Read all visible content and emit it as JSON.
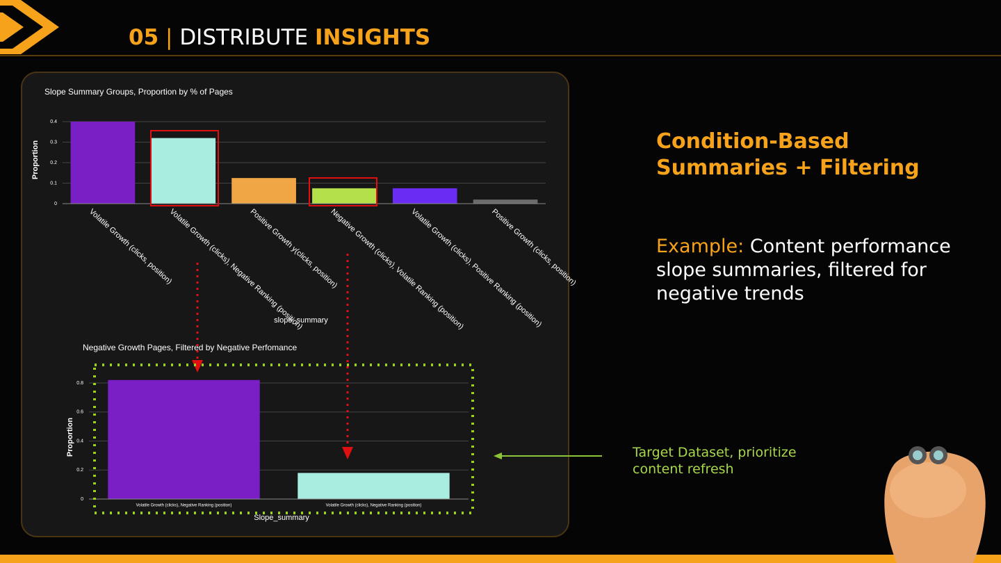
{
  "header": {
    "number": "05",
    "separator": "|",
    "title": "DISTRIBUTE",
    "highlight": "INSIGHTS"
  },
  "chart_data": [
    {
      "type": "bar",
      "title": "Slope Summary Groups, Proportion by % of Pages",
      "ylabel": "Proportion",
      "xlabel": "slope_summary",
      "categories": [
        "Volatile Growth (clicks, position)",
        "Volatile Growth (clicks), Negative Ranking (position)",
        "Positive Growth y(clicks, position)",
        "Negative Growth (clicks), Volatile Ranking (position)",
        "Volatile Growth (clicks), Positive Ranking (position)",
        "Positive Growth (clicks, position)"
      ],
      "values": [
        0.4,
        0.32,
        0.125,
        0.075,
        0.075,
        0.02
      ],
      "colors": [
        "#7a1fc6",
        "#a9ede0",
        "#f0a645",
        "#b4e04a",
        "#6a2cf2",
        "#6b6b6b"
      ],
      "ylim": [
        0,
        0.4
      ],
      "yticks": [
        0,
        0.1,
        0.2,
        0.3,
        0.4
      ],
      "grid": true
    },
    {
      "type": "bar",
      "title": "Negative Growth Pages, Filtered by Negative Perfomance",
      "ylabel": "Proportion",
      "xlabel": "Slope_summary",
      "categories": [
        "Volatile Growth (clicks), Negative Ranking (position)",
        "Volatile Growth (clicks), Negative Ranking (position)"
      ],
      "values": [
        0.82,
        0.18
      ],
      "colors": [
        "#7a1fc6",
        "#a9ede0"
      ],
      "ylim": [
        0,
        0.85
      ],
      "yticks": [
        0,
        0.2,
        0.4,
        0.6,
        0.8
      ],
      "grid": true
    }
  ],
  "side": {
    "heading": "Condition-Based Summaries + Filtering",
    "example_label": "Example:",
    "example_text": "Content performance slope summaries, filtered for negative trends",
    "target": "Target Dataset, prioritize content refresh"
  }
}
